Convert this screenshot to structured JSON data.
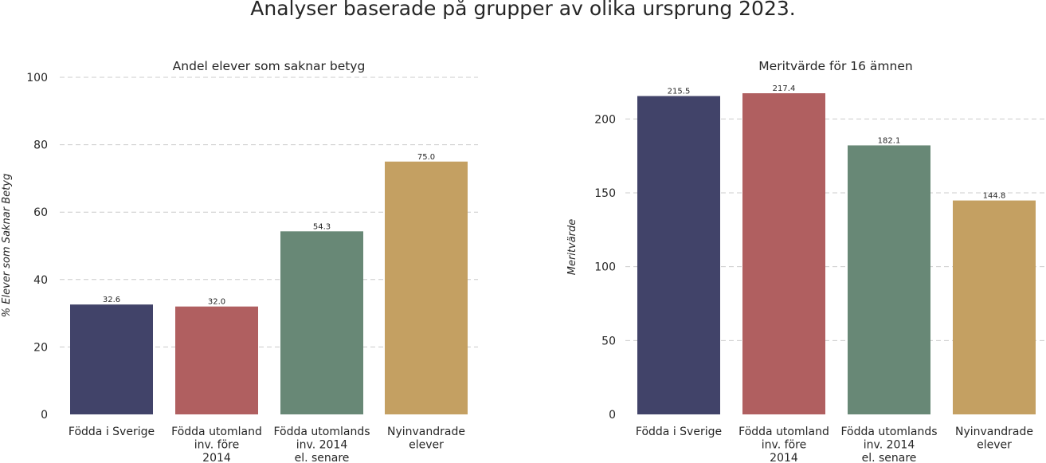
{
  "title": "Analyser baserade på grupper av olika ursprung 2023.",
  "chart_data": [
    {
      "type": "bar",
      "title": "Andel elever som saknar betyg",
      "ylabel": "% Elever som Saknar Betyg",
      "xlabel": "",
      "categories": [
        [
          "Födda i Sverige"
        ],
        [
          "Födda utomland",
          "inv. före",
          "2014"
        ],
        [
          "Födda utomlands",
          "inv. 2014",
          "el. senare"
        ],
        [
          "Nyinvandrade",
          "elever"
        ]
      ],
      "values": [
        32.6,
        32.0,
        54.3,
        75.0
      ],
      "value_labels": [
        "32.6",
        "32.0",
        "54.3",
        "75.0"
      ],
      "yticks": [
        0,
        20,
        40,
        60,
        80,
        100
      ],
      "ylim": [
        0,
        100
      ],
      "grid": true,
      "colors": [
        "#414369",
        "#b05f60",
        "#688876",
        "#c4a062"
      ]
    },
    {
      "type": "bar",
      "title": "Meritvärde för 16 ämnen",
      "ylabel": "Meritvärde",
      "xlabel": "",
      "categories": [
        [
          "Födda i Sverige"
        ],
        [
          "Födda utomland",
          "inv. före",
          "2014"
        ],
        [
          "Födda utomlands",
          "inv. 2014",
          "el. senare"
        ],
        [
          "Nyinvandrade",
          "elever"
        ]
      ],
      "values": [
        215.5,
        217.4,
        182.1,
        144.8
      ],
      "value_labels": [
        "215.5",
        "217.4",
        "182.1",
        "144.8"
      ],
      "yticks": [
        0,
        50,
        100,
        150,
        200
      ],
      "ylim": [
        0,
        217.4
      ],
      "grid": true,
      "colors": [
        "#414369",
        "#b05f60",
        "#688876",
        "#c4a062"
      ]
    }
  ]
}
